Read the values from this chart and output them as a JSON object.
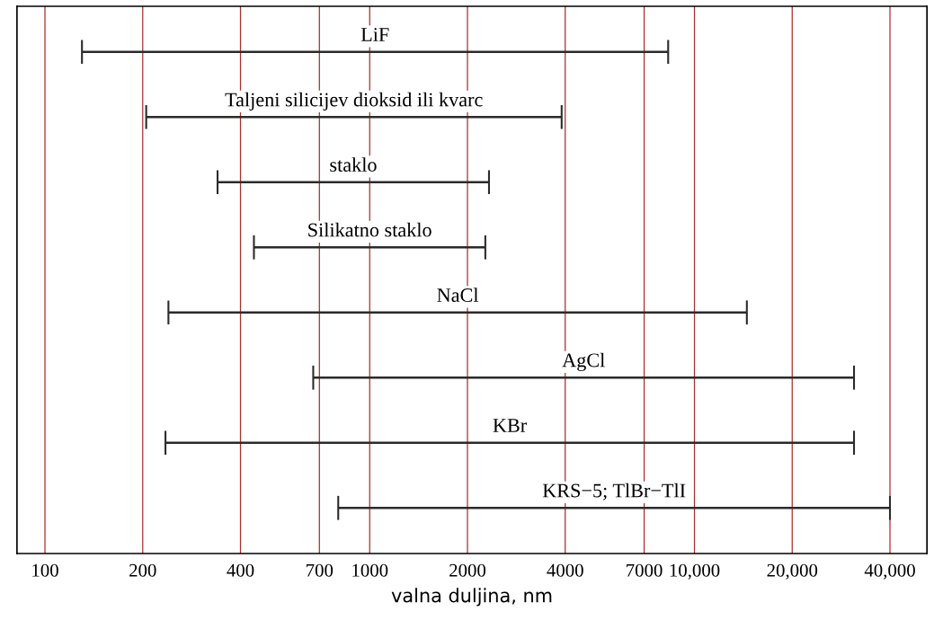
{
  "chart_data": {
    "type": "bar",
    "orientation": "horizontal",
    "log": "x",
    "xlabel": "valna duljina, nm",
    "categories": [
      "LiF",
      "Taljeni silicijev dioksid ili kvarc",
      "staklo",
      "Silikatno staklo",
      "NaCl",
      "AgCl",
      "KBr",
      "KRS−5; TlBr−TlI"
    ],
    "base": [
      130,
      205,
      340,
      440,
      240,
      670,
      235,
      800
    ],
    "values": [
      8170,
      3695,
      1990,
      1830,
      14260,
      30330,
      30765,
      39200
    ],
    "color": "#2b2b2b",
    "xlim": [
      82,
      52000
    ],
    "xticks": [
      100,
      200,
      400,
      700,
      1000,
      2000,
      4000,
      7000,
      {
        "value": 10000,
        "label": "10,000"
      },
      {
        "value": 20000,
        "label": "20,000"
      },
      {
        "value": 40000,
        "label": "40,000"
      }
    ],
    "grid": "x",
    "tick_labels": "x"
  }
}
